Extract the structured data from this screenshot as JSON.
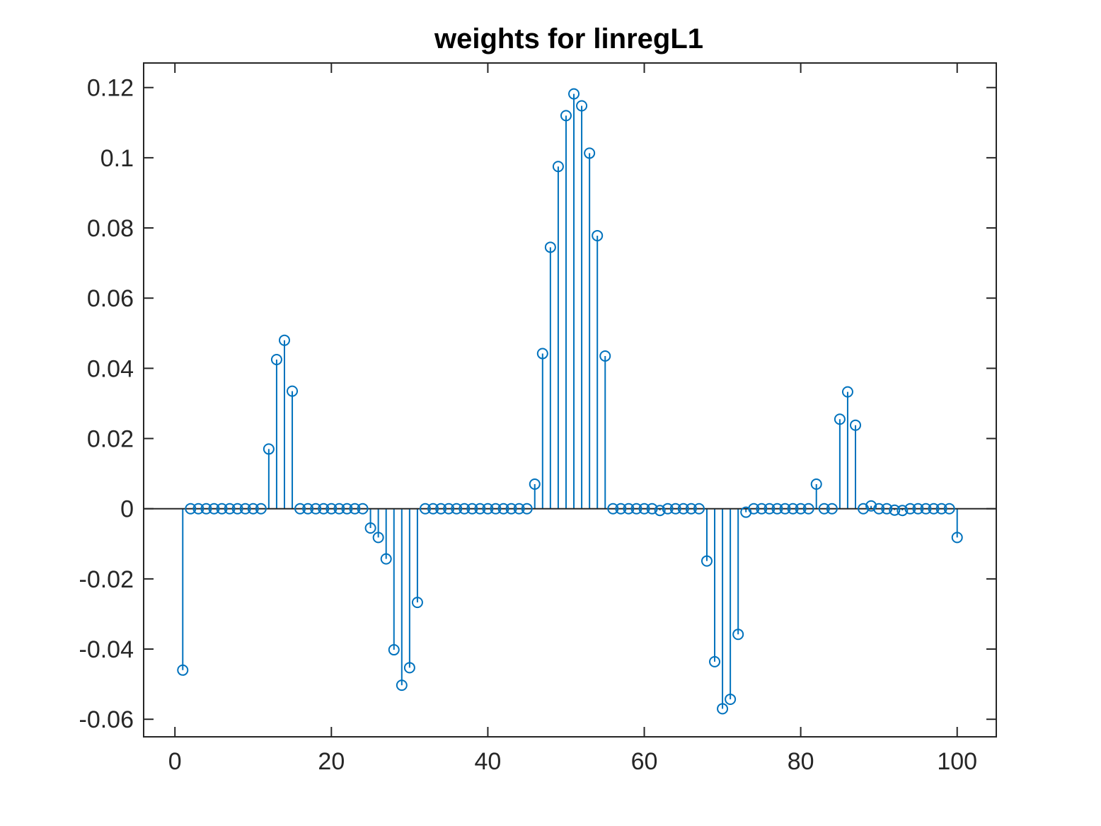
{
  "chart_data": {
    "type": "stem",
    "title": "weights for linregL1",
    "xlabel": "",
    "ylabel": "",
    "xlim": [
      -4,
      105
    ],
    "ylim": [
      -0.065,
      0.127
    ],
    "xticks": [
      0,
      20,
      40,
      60,
      80,
      100
    ],
    "xtick_labels": [
      "0",
      "20",
      "40",
      "60",
      "80",
      "100"
    ],
    "yticks": [
      -0.06,
      -0.04,
      -0.02,
      0,
      0.02,
      0.04,
      0.06,
      0.08,
      0.1,
      0.12
    ],
    "ytick_labels": [
      "-0.06",
      "-0.04",
      "-0.02",
      "0",
      "0.02",
      "0.04",
      "0.06",
      "0.08",
      "0.1",
      "0.12"
    ],
    "grid": false,
    "baseline": 0,
    "color": "#0072BD",
    "axis_color": "#262626",
    "series": [
      {
        "x": [
          1,
          2,
          3,
          4,
          5,
          6,
          7,
          8,
          9,
          10,
          11,
          12,
          13,
          14,
          15,
          16,
          17,
          18,
          19,
          20,
          21,
          22,
          23,
          24,
          25,
          26,
          27,
          28,
          29,
          30,
          31,
          32,
          33,
          34,
          35,
          36,
          37,
          38,
          39,
          40,
          41,
          42,
          43,
          44,
          45,
          46,
          47,
          48,
          49,
          50,
          51,
          52,
          53,
          54,
          55,
          56,
          57,
          58,
          59,
          60,
          61,
          62,
          63,
          64,
          65,
          66,
          67,
          68,
          69,
          70,
          71,
          72,
          73,
          74,
          75,
          76,
          77,
          78,
          79,
          80,
          81,
          82,
          83,
          84,
          85,
          86,
          87,
          88,
          89,
          90,
          91,
          92,
          93,
          94,
          95,
          96,
          97,
          98,
          99,
          100
        ],
        "values": [
          -0.046,
          0,
          0,
          0,
          0,
          0,
          0,
          0,
          0,
          0,
          0,
          0.017,
          0.0425,
          0.048,
          0.0335,
          0,
          0,
          0,
          0,
          0,
          0,
          0,
          0,
          0,
          -0.0055,
          -0.0082,
          -0.0143,
          -0.0402,
          -0.0503,
          -0.0453,
          -0.0267,
          0,
          0,
          0,
          0,
          0,
          0,
          0,
          0,
          0,
          0,
          0,
          0,
          0,
          0,
          0.007,
          0.0442,
          0.0745,
          0.0975,
          0.112,
          0.1182,
          0.1148,
          0.1013,
          0.0778,
          0.0435,
          0,
          0,
          0,
          0,
          0,
          0,
          -0.0005,
          0,
          0,
          0,
          0,
          0,
          -0.0149,
          -0.0436,
          -0.057,
          -0.0543,
          -0.0358,
          -0.001,
          0,
          0,
          0,
          0,
          0,
          0,
          0,
          0,
          0.007,
          0,
          0,
          0.0255,
          0.0333,
          0.0238,
          0,
          0.0008,
          0,
          0,
          -0.0004,
          -0.0005,
          0,
          0,
          0,
          0,
          0,
          0,
          -0.0082
        ]
      }
    ]
  }
}
